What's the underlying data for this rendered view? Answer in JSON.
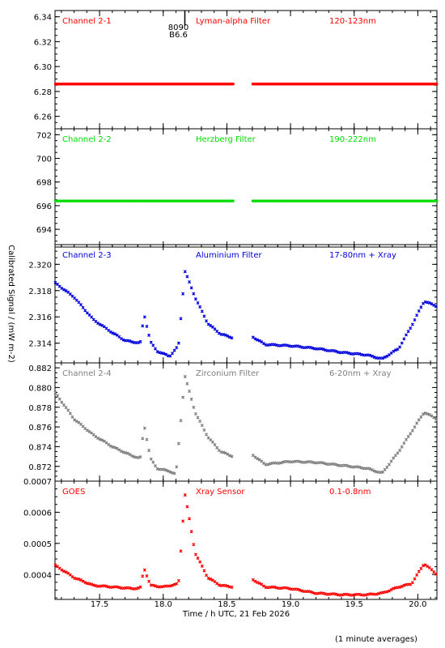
{
  "chart_data": {
    "type": "scatter",
    "x_title": "Time / h UTC, 21 Feb 2026",
    "y_title": "Calibrated Signal / (mW m-2)",
    "footnote": "(1 minute averages)",
    "xlim": [
      17.15,
      20.15
    ],
    "x_ticks": [
      "17.5",
      "18.0",
      "18.5",
      "19.0",
      "19.5",
      "20.0"
    ],
    "gap": [
      18.55,
      18.7
    ],
    "flare_marker": {
      "x": 18.17,
      "labels": [
        "8090",
        "B6.6"
      ]
    },
    "panels": [
      {
        "name": "Channel 2-1",
        "filter": "Lyman-alpha Filter",
        "band": "120-123nm",
        "color": "#ff0000",
        "ylim": [
          6.25,
          6.345
        ],
        "yticks": [
          "6.34",
          "6.32",
          "6.30",
          "6.28",
          "6.26"
        ],
        "points": [
          [
            17.15,
            6.286
          ],
          [
            18.55,
            6.286
          ],
          [
            18.7,
            6.286
          ],
          [
            19.2,
            6.286
          ],
          [
            20.15,
            6.286
          ]
        ]
      },
      {
        "name": "Channel 2-2",
        "filter": "Herzberg Filter",
        "band": "190-222nm",
        "color": "#00dd00",
        "ylim": [
          692.5,
          702.5
        ],
        "yticks": [
          "702",
          "700",
          "698",
          "696",
          "694"
        ],
        "points": [
          [
            17.15,
            696.4
          ],
          [
            18.55,
            696.4
          ],
          [
            18.7,
            696.4
          ],
          [
            20.15,
            696.4
          ]
        ]
      },
      {
        "name": "Channel 2-3",
        "filter": "Aluminium Filter",
        "band": "17-80nm + Xray",
        "color": "#0000dd",
        "ylim": [
          2.3125,
          2.3215
        ],
        "yticks": [
          "2.320",
          "2.318",
          "2.316",
          "2.314"
        ],
        "points": [
          [
            17.15,
            2.3186
          ],
          [
            17.3,
            2.3175
          ],
          [
            17.45,
            2.3158
          ],
          [
            17.6,
            2.3148
          ],
          [
            17.7,
            2.3142
          ],
          [
            17.82,
            2.314
          ],
          [
            17.85,
            2.3162
          ],
          [
            17.9,
            2.3141
          ],
          [
            17.95,
            2.3134
          ],
          [
            18.05,
            2.313
          ],
          [
            18.12,
            2.3138
          ],
          [
            18.17,
            2.3195
          ],
          [
            18.25,
            2.3175
          ],
          [
            18.35,
            2.3155
          ],
          [
            18.45,
            2.3147
          ],
          [
            18.55,
            2.3144
          ],
          [
            18.7,
            2.3145
          ],
          [
            18.8,
            2.3139
          ],
          [
            19.0,
            2.3138
          ],
          [
            19.2,
            2.3136
          ],
          [
            19.4,
            2.3133
          ],
          [
            19.6,
            2.3131
          ],
          [
            19.72,
            2.3128
          ],
          [
            19.85,
            2.3136
          ],
          [
            19.95,
            2.3153
          ],
          [
            20.05,
            2.3172
          ],
          [
            20.15,
            2.3168
          ]
        ]
      },
      {
        "name": "Channel 2-4",
        "filter": "Zirconium Filter",
        "band": "6-20nm + Xray",
        "color": "#808080",
        "ylim": [
          0.8705,
          0.8825
        ],
        "yticks": [
          "0.882",
          "0.880",
          "0.878",
          "0.876",
          "0.874",
          "0.872"
        ],
        "points": [
          [
            17.15,
            0.8795
          ],
          [
            17.3,
            0.8768
          ],
          [
            17.45,
            0.8752
          ],
          [
            17.6,
            0.874
          ],
          [
            17.75,
            0.8731
          ],
          [
            17.82,
            0.8728
          ],
          [
            17.85,
            0.8762
          ],
          [
            17.9,
            0.8728
          ],
          [
            17.95,
            0.8718
          ],
          [
            18.05,
            0.8715
          ],
          [
            18.1,
            0.8712
          ],
          [
            18.17,
            0.8812
          ],
          [
            18.25,
            0.8775
          ],
          [
            18.35,
            0.875
          ],
          [
            18.45,
            0.8735
          ],
          [
            18.55,
            0.873
          ],
          [
            18.7,
            0.8732
          ],
          [
            18.8,
            0.8722
          ],
          [
            19.0,
            0.8725
          ],
          [
            19.2,
            0.8724
          ],
          [
            19.4,
            0.8721
          ],
          [
            19.6,
            0.8718
          ],
          [
            19.72,
            0.8713
          ],
          [
            19.85,
            0.8735
          ],
          [
            19.95,
            0.8755
          ],
          [
            20.05,
            0.8775
          ],
          [
            20.15,
            0.8768
          ]
        ]
      },
      {
        "name": "GOES",
        "filter": "Xray Sensor",
        "band": "0.1-0.8nm",
        "color": "#ff0000",
        "ylim": [
          0.00032,
          0.0007
        ],
        "yticks": [
          "0.0007",
          "0.0006",
          "0.0005",
          "0.0004"
        ],
        "points": [
          [
            17.15,
            0.00043
          ],
          [
            17.3,
            0.00039
          ],
          [
            17.45,
            0.000365
          ],
          [
            17.6,
            0.00036
          ],
          [
            17.75,
            0.000355
          ],
          [
            17.82,
            0.000356
          ],
          [
            17.85,
            0.00042
          ],
          [
            17.9,
            0.000365
          ],
          [
            18.0,
            0.00036
          ],
          [
            18.12,
            0.00037
          ],
          [
            18.17,
            0.00066
          ],
          [
            18.2,
            0.00059
          ],
          [
            18.25,
            0.00047
          ],
          [
            18.35,
            0.00039
          ],
          [
            18.45,
            0.000365
          ],
          [
            18.55,
            0.00036
          ],
          [
            18.65,
            0.000375
          ],
          [
            18.7,
            0.000385
          ],
          [
            18.8,
            0.00036
          ],
          [
            19.0,
            0.000355
          ],
          [
            19.2,
            0.00034
          ],
          [
            19.4,
            0.000335
          ],
          [
            19.6,
            0.000335
          ],
          [
            19.72,
            0.00034
          ],
          [
            19.85,
            0.00036
          ],
          [
            19.95,
            0.00037
          ],
          [
            20.05,
            0.000435
          ],
          [
            20.15,
            0.0004
          ]
        ]
      }
    ]
  }
}
